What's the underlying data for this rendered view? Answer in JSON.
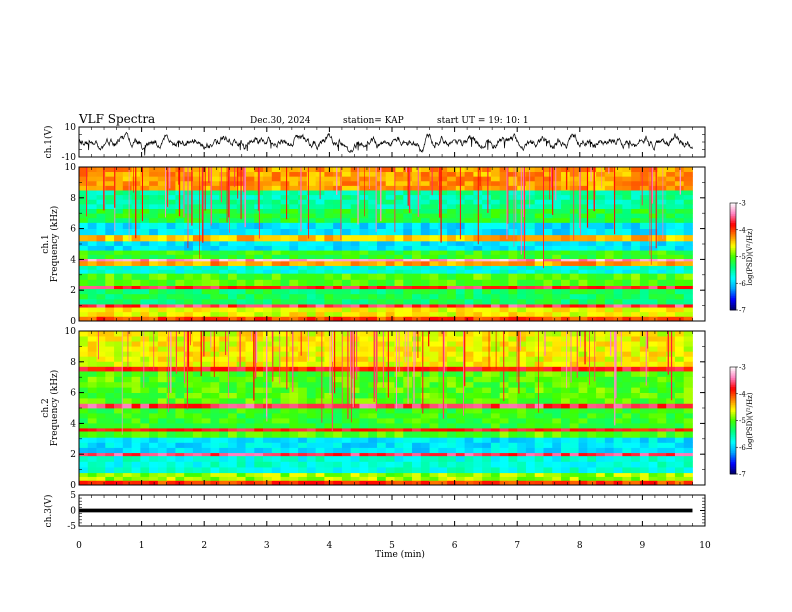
{
  "header": {
    "title": "VLF Spectra",
    "date": "Dec.30, 2024",
    "station": "station= KAP",
    "start": "start  UT =   19: 10: 1"
  },
  "chart_data": [
    {
      "id": "ch1-waveform",
      "type": "line",
      "ylabel": "ch.1(V)",
      "ylim": [
        -10,
        10
      ],
      "y_ticks": [
        10,
        -10
      ],
      "y_tick_labels": [
        "10",
        "-10"
      ],
      "x_range_min": [
        0,
        9.8
      ],
      "series": [
        {
          "name": "ch.1",
          "shape": "noisy oscillation around 0 V, amplitude ~ 3-5 V"
        }
      ]
    },
    {
      "id": "ch1-spectrogram",
      "type": "heatmap",
      "ylabel": "ch.1\nFrequency (kHz)",
      "ylabel_lines": [
        "ch.1",
        "Frequency (kHz)"
      ],
      "ylim": [
        0,
        10
      ],
      "y_ticks": [
        0,
        2,
        4,
        6,
        8,
        10
      ],
      "y_tick_labels": [
        "0",
        "2",
        "4",
        "6",
        "8",
        "10"
      ],
      "x_range_min": [
        0,
        9.8
      ],
      "colorbar": {
        "label": "log(PSD)(V²/Hz)",
        "range": [
          -7,
          -3
        ],
        "ticks": [
          -3,
          -4,
          -5,
          -6,
          -7
        ],
        "tick_labels": [
          "-3",
          "-4",
          "-5",
          "-6",
          "-7"
        ],
        "colors": [
          "#000060",
          "#0000ff",
          "#00a0ff",
          "#00ffff",
          "#00ff80",
          "#40ff00",
          "#ffff00",
          "#ff8000",
          "#ff0000",
          "#ff80c0",
          "#ffffff"
        ]
      },
      "bands": [
        {
          "f": [
            0,
            0.3
          ],
          "level": -4.0
        },
        {
          "f": [
            0.3,
            0.9
          ],
          "level": -4.6
        },
        {
          "f": [
            0.9,
            1.1
          ],
          "level": -3.6
        },
        {
          "f": [
            1.1,
            2.1
          ],
          "level": -5.3
        },
        {
          "f": [
            2.1,
            2.3
          ],
          "level": -3.7
        },
        {
          "f": [
            2.3,
            3.1
          ],
          "level": -5.0
        },
        {
          "f": [
            3.1,
            3.6
          ],
          "level": -5.7
        },
        {
          "f": [
            3.6,
            3.9
          ],
          "level": -4.3
        },
        {
          "f": [
            3.9,
            4.05
          ],
          "level": -3.3
        },
        {
          "f": [
            4.05,
            4.6
          ],
          "level": -5.1
        },
        {
          "f": [
            4.6,
            5.2
          ],
          "level": -5.9
        },
        {
          "f": [
            5.2,
            5.6
          ],
          "level": -4.4
        },
        {
          "f": [
            5.6,
            6.4
          ],
          "level": -5.9
        },
        {
          "f": [
            6.4,
            7.3
          ],
          "level": -5.2
        },
        {
          "f": [
            7.3,
            8.5
          ],
          "level": -5.5
        },
        {
          "f": [
            8.5,
            10
          ],
          "level": -4.3
        }
      ]
    },
    {
      "id": "ch2-spectrogram",
      "type": "heatmap",
      "ylabel": "ch.2\nFrequency (kHz)",
      "ylabel_lines": [
        "ch.2",
        "Frequency (kHz)"
      ],
      "ylim": [
        0,
        10
      ],
      "y_ticks": [
        0,
        2,
        4,
        6,
        8,
        10
      ],
      "y_tick_labels": [
        "0",
        "2",
        "4",
        "6",
        "8",
        "10"
      ],
      "x_range_min": [
        0,
        9.8
      ],
      "colorbar": {
        "label": "log(PSD)(V²/Hz)",
        "range": [
          -7,
          -3
        ],
        "ticks": [
          -3,
          -4,
          -5,
          -6,
          -7
        ],
        "tick_labels": [
          "-3",
          "-4",
          "-5",
          "-6",
          "-7"
        ],
        "colors": [
          "#000060",
          "#0000ff",
          "#00a0ff",
          "#00ffff",
          "#00ff80",
          "#40ff00",
          "#ffff00",
          "#ff8000",
          "#ff0000",
          "#ff80c0",
          "#ffffff"
        ]
      },
      "bands": [
        {
          "f": [
            0,
            0.3
          ],
          "level": -4.0
        },
        {
          "f": [
            0.3,
            0.8
          ],
          "level": -4.8
        },
        {
          "f": [
            0.8,
            1.9
          ],
          "level": -5.7
        },
        {
          "f": [
            1.9,
            2.1
          ],
          "level": -3.6
        },
        {
          "f": [
            2.1,
            3.1
          ],
          "level": -5.9
        },
        {
          "f": [
            3.1,
            3.5
          ],
          "level": -5.0
        },
        {
          "f": [
            3.5,
            3.7
          ],
          "level": -3.8
        },
        {
          "f": [
            3.7,
            5.0
          ],
          "level": -5.1
        },
        {
          "f": [
            5.0,
            5.3
          ],
          "level": -3.6
        },
        {
          "f": [
            5.3,
            7.4
          ],
          "level": -5.0
        },
        {
          "f": [
            7.4,
            7.7
          ],
          "level": -3.8
        },
        {
          "f": [
            7.7,
            10
          ],
          "level": -4.6
        }
      ]
    },
    {
      "id": "ch3-waveform",
      "type": "line",
      "ylabel": "ch.3(V)",
      "ylim": [
        -5,
        5
      ],
      "y_ticks": [
        5,
        0,
        -5
      ],
      "y_tick_labels": [
        "5",
        "0",
        "-5"
      ],
      "x_range_min": [
        0,
        9.8
      ],
      "series": [
        {
          "name": "ch.3",
          "shape": "dense signal filling about -0.5 V to 0.5 V around 0"
        }
      ]
    }
  ],
  "xaxis": {
    "label": "Time (min)",
    "range": [
      0,
      10
    ],
    "ticks": [
      0,
      1,
      2,
      3,
      4,
      5,
      6,
      7,
      8,
      9,
      10
    ],
    "tick_labels": [
      "0",
      "1",
      "2",
      "3",
      "4",
      "5",
      "6",
      "7",
      "8",
      "9",
      "10"
    ]
  }
}
